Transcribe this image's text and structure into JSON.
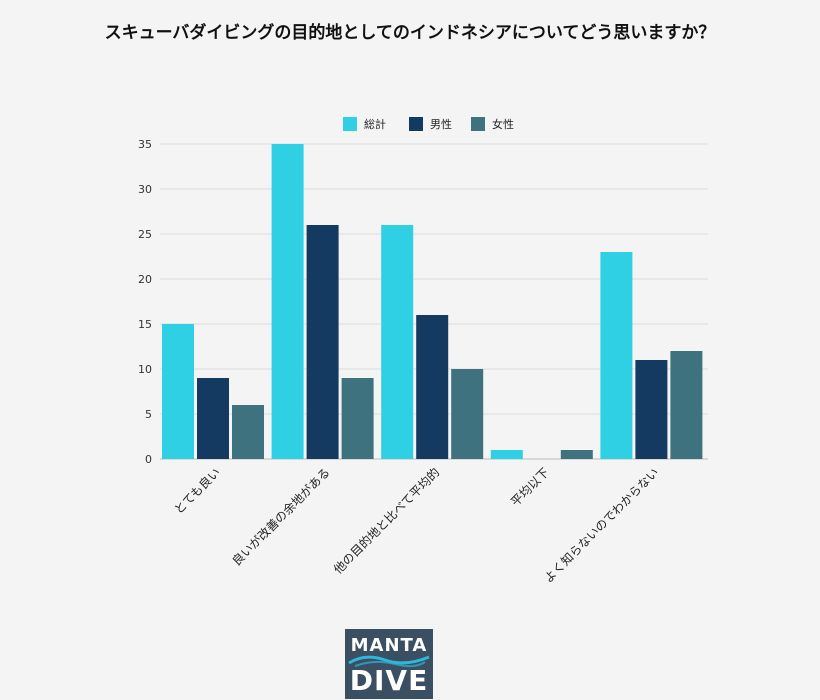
{
  "chart_data": {
    "type": "bar",
    "title": "スキューバダイビングの目的地としてのインドネシアについてどう思いますか？",
    "categories": [
      "とても良い",
      "良いが改善の余地がある",
      "他の目的地と比べて平均的",
      "平均以下",
      "よく知らないのでわからない"
    ],
    "series": [
      {
        "name": "総計",
        "values": [
          15,
          35,
          26,
          1,
          23
        ],
        "color": "#2fd0e3"
      },
      {
        "name": "男性",
        "values": [
          9,
          26,
          16,
          0,
          11
        ],
        "color": "#143a62"
      },
      {
        "name": "女性",
        "values": [
          6,
          9,
          10,
          1,
          12
        ],
        "color": "#3e727f"
      }
    ],
    "yticks": [
      0,
      5,
      10,
      15,
      20,
      25,
      30,
      35
    ],
    "ylim": [
      0,
      35
    ],
    "grid": true,
    "legend_position": "top-center"
  },
  "logo": {
    "line1": "MANTA",
    "line2": "DIVE",
    "wave_color": "#2fb6d8"
  }
}
